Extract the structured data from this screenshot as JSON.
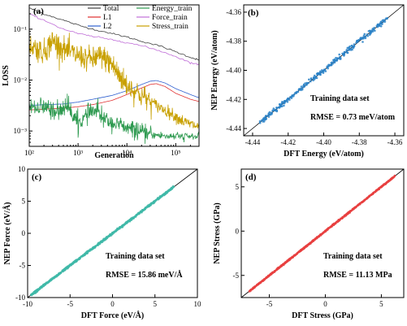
{
  "chart_data": [
    {
      "panel": "(a)",
      "type": "line",
      "xlabel": "Generation",
      "ylabel": "LOSS",
      "xscale": "log",
      "yscale": "log",
      "xlim": [
        100,
        300000
      ],
      "ylim": [
        0.0005,
        0.3
      ],
      "xticks": [
        "10²",
        "10³",
        "10⁴",
        "10⁵"
      ],
      "yticks": [
        "10⁻³",
        "10⁻²",
        "10⁻¹"
      ],
      "legend_position": "top-right",
      "series": [
        {
          "name": "Total",
          "color": "#404040",
          "x": [
            100,
            200,
            500,
            1000,
            2000,
            5000,
            10000,
            20000,
            50000,
            100000,
            200000,
            300000
          ],
          "y": [
            0.26,
            0.2,
            0.15,
            0.12,
            0.1,
            0.082,
            0.07,
            0.058,
            0.046,
            0.036,
            0.028,
            0.025
          ]
        },
        {
          "name": "L1",
          "color": "#e03030",
          "x": [
            100,
            500,
            1000,
            2000,
            5000,
            10000,
            20000,
            30000,
            40000,
            60000,
            100000,
            200000,
            300000
          ],
          "y": [
            0.0026,
            0.0028,
            0.003,
            0.0033,
            0.004,
            0.0052,
            0.007,
            0.0082,
            0.0085,
            0.0075,
            0.0055,
            0.0042,
            0.0038
          ]
        },
        {
          "name": "L2",
          "color": "#3060d0",
          "x": [
            100,
            500,
            1000,
            2000,
            5000,
            10000,
            20000,
            30000,
            40000,
            60000,
            100000,
            200000,
            300000
          ],
          "y": [
            0.0032,
            0.0034,
            0.0037,
            0.0042,
            0.005,
            0.0062,
            0.0082,
            0.0095,
            0.0098,
            0.0088,
            0.0068,
            0.0052,
            0.0045
          ]
        },
        {
          "name": "Energy_train",
          "color": "#2e9a50",
          "x": [
            100,
            200,
            400,
            600,
            1000,
            2000,
            4000,
            8000,
            15000,
            30000,
            60000,
            120000,
            300000
          ],
          "y": [
            0.003,
            0.0028,
            0.0022,
            0.0032,
            0.0014,
            0.0025,
            0.0016,
            0.0012,
            0.001,
            0.00085,
            0.0008,
            0.00078,
            0.00078
          ]
        },
        {
          "name": "Force_train",
          "color": "#c070d8",
          "x": [
            100,
            200,
            500,
            1000,
            2000,
            5000,
            10000,
            20000,
            50000,
            100000,
            200000,
            300000
          ],
          "y": [
            0.2,
            0.15,
            0.1,
            0.082,
            0.072,
            0.062,
            0.055,
            0.047,
            0.037,
            0.029,
            0.022,
            0.02
          ]
        },
        {
          "name": "Stress_train",
          "color": "#c8a000",
          "x": [
            100,
            200,
            300,
            500,
            1000,
            2000,
            3000,
            5000,
            7000,
            10000,
            20000,
            40000,
            80000,
            150000,
            300000
          ],
          "y": [
            0.05,
            0.035,
            0.06,
            0.04,
            0.03,
            0.025,
            0.03,
            0.02,
            0.012,
            0.008,
            0.005,
            0.0032,
            0.0022,
            0.0015,
            0.0012
          ]
        }
      ]
    },
    {
      "panel": "(b)",
      "type": "scatter",
      "xlabel": "DFT Energy (eV/atom)",
      "ylabel": "NEP Energy (eV/atom)",
      "xlim": [
        -4.445,
        -4.355
      ],
      "ylim": [
        -4.445,
        -4.355
      ],
      "xticks": [
        "-4.44",
        "-4.42",
        "-4.40",
        "-4.38",
        "-4.36"
      ],
      "yticks": [
        "-4.44",
        "-4.42",
        "-4.40",
        "-4.38",
        "-4.36"
      ],
      "range": [
        -4.436,
        -4.364
      ],
      "color": "#2a82c8",
      "annotation": "Training data set",
      "rmse": "RMSE = 0.73 meV/atom"
    },
    {
      "panel": "(c)",
      "type": "scatter",
      "xlabel": "DFT Force (eV/Å)",
      "ylabel": "NEP Force (eV/Å)",
      "xlim": [
        -10,
        10
      ],
      "ylim": [
        -10,
        10
      ],
      "xticks": [
        "-10",
        "-5",
        "0",
        "5",
        "10"
      ],
      "yticks": [
        "-10",
        "-5",
        "0",
        "5",
        "10"
      ],
      "range": [
        -9.6,
        7.2
      ],
      "color": "#40b8a8",
      "annotation": "Training data set",
      "rmse": "RMSE = 15.86 meV/Å"
    },
    {
      "panel": "(d)",
      "type": "scatter",
      "xlabel": "DFT Stress (GPa)",
      "ylabel": "NEP Stress (GPa)",
      "xlim": [
        -7.5,
        7
      ],
      "ylim": [
        -7.5,
        7
      ],
      "xticks": [
        "-5",
        "0",
        "5"
      ],
      "yticks": [
        "-5",
        "0",
        "5"
      ],
      "range": [
        -6.8,
        6.2
      ],
      "color": "#e84040",
      "annotation": "Training data set",
      "rmse": "RMSE = 11.13 MPa"
    }
  ]
}
